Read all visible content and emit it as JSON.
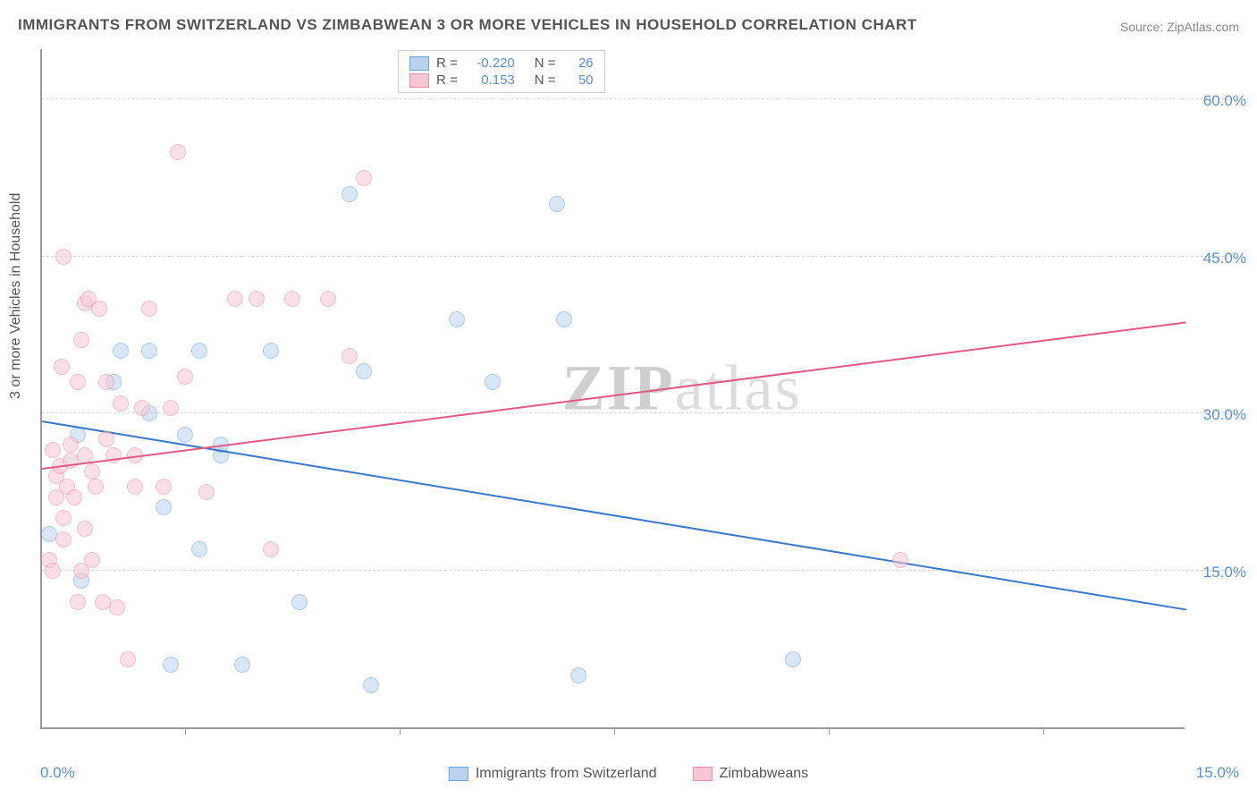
{
  "title": "IMMIGRANTS FROM SWITZERLAND VS ZIMBABWEAN 3 OR MORE VEHICLES IN HOUSEHOLD CORRELATION CHART",
  "source": "Source: ZipAtlas.com",
  "watermark_a": "ZIP",
  "watermark_b": "atlas",
  "chart": {
    "type": "scatter",
    "background_color": "#ffffff",
    "grid_color": "#dddddd",
    "axis_color": "#999999",
    "ylabel": "3 or more Vehicles in Household",
    "ylabel_color": "#555555",
    "ylabel_fontsize": 16,
    "tick_label_color": "#5a8fd6",
    "tick_fontsize": 17,
    "xlim": [
      0,
      16
    ],
    "ylim": [
      0,
      65
    ],
    "ytick_values": [
      15,
      30,
      45,
      60
    ],
    "ytick_labels": [
      "15.0%",
      "30.0%",
      "45.0%",
      "60.0%"
    ],
    "xtick_values": [
      2,
      5,
      8,
      11,
      14
    ],
    "xaxis_labels": {
      "left": "0.0%",
      "right": "15.0%"
    },
    "point_radius": 9,
    "point_opacity": 0.55,
    "series": [
      {
        "name": "Immigrants from Switzerland",
        "fill": "#b9d3ef",
        "stroke": "#6fa3dc",
        "r_value": "-0.220",
        "n_value": "26",
        "trend": {
          "y_at_x0": 29.5,
          "y_at_x16": 11.5,
          "color": "#3b78c9"
        },
        "points": [
          [
            0.1,
            18.5
          ],
          [
            0.5,
            28.0
          ],
          [
            1.0,
            33.0
          ],
          [
            1.1,
            36.0
          ],
          [
            1.5,
            30.0
          ],
          [
            1.5,
            36.0
          ],
          [
            1.7,
            21.0
          ],
          [
            2.0,
            28.0
          ],
          [
            2.2,
            36.0
          ],
          [
            2.2,
            17.0
          ],
          [
            2.5,
            26.0
          ],
          [
            2.5,
            27.0
          ],
          [
            2.8,
            6.0
          ],
          [
            3.2,
            36.0
          ],
          [
            3.6,
            12.0
          ],
          [
            4.3,
            51.0
          ],
          [
            4.5,
            34.0
          ],
          [
            4.6,
            4.0
          ],
          [
            5.8,
            39.0
          ],
          [
            6.3,
            33.0
          ],
          [
            7.2,
            50.0
          ],
          [
            7.3,
            39.0
          ],
          [
            7.5,
            5.0
          ],
          [
            10.5,
            6.5
          ],
          [
            0.55,
            14.0
          ],
          [
            1.8,
            6.0
          ]
        ]
      },
      {
        "name": "Zimbabweans",
        "fill": "#f6c6d3",
        "stroke": "#e88fa9",
        "r_value": "0.153",
        "n_value": "50",
        "trend": {
          "y_at_x0": 25.0,
          "y_at_x16": 39.0,
          "color": "#e25a83"
        },
        "points": [
          [
            0.1,
            16.0
          ],
          [
            0.15,
            15.0
          ],
          [
            0.2,
            22.0
          ],
          [
            0.2,
            24.0
          ],
          [
            0.25,
            25.0
          ],
          [
            0.3,
            18.0
          ],
          [
            0.3,
            20.0
          ],
          [
            0.3,
            45.0
          ],
          [
            0.35,
            23.0
          ],
          [
            0.4,
            25.5
          ],
          [
            0.4,
            27.0
          ],
          [
            0.45,
            22.0
          ],
          [
            0.5,
            12.0
          ],
          [
            0.5,
            33.0
          ],
          [
            0.55,
            15.0
          ],
          [
            0.55,
            37.0
          ],
          [
            0.6,
            19.0
          ],
          [
            0.6,
            26.0
          ],
          [
            0.6,
            40.5
          ],
          [
            0.65,
            41.0
          ],
          [
            0.7,
            16.0
          ],
          [
            0.7,
            24.5
          ],
          [
            0.75,
            23.0
          ],
          [
            0.8,
            40.0
          ],
          [
            0.85,
            12.0
          ],
          [
            0.9,
            27.5
          ],
          [
            0.9,
            33.0
          ],
          [
            1.0,
            26.0
          ],
          [
            1.05,
            11.5
          ],
          [
            1.1,
            31.0
          ],
          [
            1.2,
            6.5
          ],
          [
            1.3,
            23.0
          ],
          [
            1.3,
            26.0
          ],
          [
            1.4,
            30.5
          ],
          [
            1.5,
            40.0
          ],
          [
            1.7,
            23.0
          ],
          [
            1.8,
            30.5
          ],
          [
            1.9,
            55.0
          ],
          [
            2.0,
            33.5
          ],
          [
            2.3,
            22.5
          ],
          [
            2.7,
            41.0
          ],
          [
            3.0,
            41.0
          ],
          [
            3.2,
            17.0
          ],
          [
            3.5,
            41.0
          ],
          [
            4.0,
            41.0
          ],
          [
            4.3,
            35.5
          ],
          [
            4.5,
            52.5
          ],
          [
            12.0,
            16.0
          ],
          [
            0.15,
            26.5
          ],
          [
            0.28,
            34.5
          ]
        ]
      }
    ]
  },
  "legend_top_labels": {
    "r": "R =",
    "n": "N ="
  }
}
